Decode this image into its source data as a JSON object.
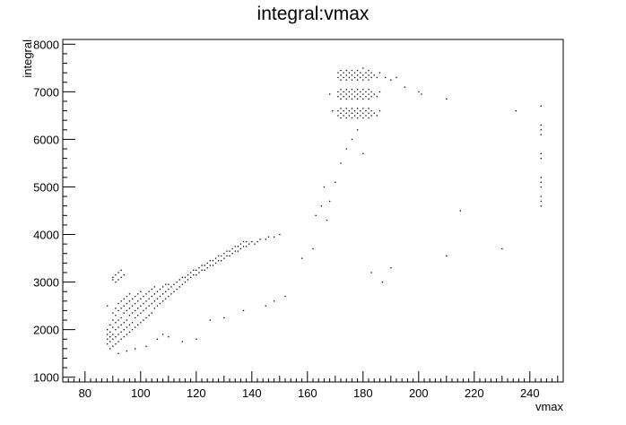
{
  "chart_data": {
    "type": "scatter",
    "title": "integral:vmax",
    "xlabel": "vmax",
    "ylabel": "integral",
    "xlim": [
      72,
      252
    ],
    "ylim": [
      900,
      8100
    ],
    "x_ticks": [
      80,
      100,
      120,
      140,
      160,
      180,
      200,
      220,
      240
    ],
    "y_ticks": [
      1000,
      2000,
      3000,
      4000,
      5000,
      6000,
      7000,
      8000
    ],
    "grid": false,
    "legend": "none",
    "marker_color": "#000000",
    "clusters": [
      {
        "region": "linear band",
        "x_range": [
          88,
          150
        ],
        "y_range": [
          1600,
          4000
        ],
        "trend": "increasing"
      },
      {
        "region": "upper stripes",
        "x_range": [
          171,
          186
        ],
        "y_levels": [
          6550,
          6950,
          7350
        ]
      },
      {
        "region": "right column",
        "x": 244,
        "y_range": [
          4600,
          6700
        ]
      }
    ],
    "points": [
      [
        88,
        1700
      ],
      [
        88,
        1800
      ],
      [
        88,
        1900
      ],
      [
        88,
        2000
      ],
      [
        88,
        2500
      ],
      [
        89,
        1600
      ],
      [
        89,
        1750
      ],
      [
        89,
        1850
      ],
      [
        89,
        1950
      ],
      [
        89,
        2100
      ],
      [
        90,
        1650
      ],
      [
        90,
        1800
      ],
      [
        90,
        1900
      ],
      [
        90,
        2050
      ],
      [
        90,
        2200
      ],
      [
        90,
        2350
      ],
      [
        90,
        3050
      ],
      [
        90,
        3100
      ],
      [
        91,
        1700
      ],
      [
        91,
        1850
      ],
      [
        91,
        2000
      ],
      [
        91,
        2150
      ],
      [
        91,
        2300
      ],
      [
        91,
        2450
      ],
      [
        91,
        3000
      ],
      [
        91,
        3150
      ],
      [
        92,
        1750
      ],
      [
        92,
        1900
      ],
      [
        92,
        2050
      ],
      [
        92,
        2200
      ],
      [
        92,
        2400
      ],
      [
        92,
        2550
      ],
      [
        92,
        3050
      ],
      [
        92,
        3200
      ],
      [
        93,
        1800
      ],
      [
        93,
        1950
      ],
      [
        93,
        2100
      ],
      [
        93,
        2250
      ],
      [
        93,
        2450
      ],
      [
        93,
        2600
      ],
      [
        93,
        3100
      ],
      [
        93,
        3250
      ],
      [
        94,
        1850
      ],
      [
        94,
        2000
      ],
      [
        94,
        2150
      ],
      [
        94,
        2350
      ],
      [
        94,
        2500
      ],
      [
        94,
        2650
      ],
      [
        94,
        3150
      ],
      [
        95,
        1900
      ],
      [
        95,
        2050
      ],
      [
        95,
        2200
      ],
      [
        95,
        2400
      ],
      [
        95,
        2550
      ],
      [
        95,
        2700
      ],
      [
        96,
        1950
      ],
      [
        96,
        2100
      ],
      [
        96,
        2300
      ],
      [
        96,
        2450
      ],
      [
        96,
        2600
      ],
      [
        96,
        2750
      ],
      [
        97,
        2000
      ],
      [
        97,
        2150
      ],
      [
        97,
        2350
      ],
      [
        97,
        2500
      ],
      [
        97,
        2650
      ],
      [
        98,
        2050
      ],
      [
        98,
        2250
      ],
      [
        98,
        2400
      ],
      [
        98,
        2550
      ],
      [
        98,
        2700
      ],
      [
        99,
        2100
      ],
      [
        99,
        2300
      ],
      [
        99,
        2450
      ],
      [
        99,
        2600
      ],
      [
        99,
        2750
      ],
      [
        100,
        2150
      ],
      [
        100,
        2350
      ],
      [
        100,
        2500
      ],
      [
        100,
        2650
      ],
      [
        100,
        2800
      ],
      [
        101,
        2200
      ],
      [
        101,
        2400
      ],
      [
        101,
        2550
      ],
      [
        101,
        2700
      ],
      [
        102,
        2250
      ],
      [
        102,
        2450
      ],
      [
        102,
        2600
      ],
      [
        102,
        2750
      ],
      [
        103,
        2300
      ],
      [
        103,
        2500
      ],
      [
        103,
        2650
      ],
      [
        103,
        2800
      ],
      [
        104,
        2350
      ],
      [
        104,
        2550
      ],
      [
        104,
        2700
      ],
      [
        104,
        2850
      ],
      [
        105,
        2450
      ],
      [
        105,
        2600
      ],
      [
        105,
        2750
      ],
      [
        105,
        2900
      ],
      [
        106,
        2500
      ],
      [
        106,
        2650
      ],
      [
        106,
        2800
      ],
      [
        107,
        2550
      ],
      [
        107,
        2700
      ],
      [
        107,
        2850
      ],
      [
        108,
        2600
      ],
      [
        108,
        2750
      ],
      [
        108,
        2900
      ],
      [
        109,
        2650
      ],
      [
        109,
        2800
      ],
      [
        109,
        2950
      ],
      [
        110,
        2700
      ],
      [
        110,
        2850
      ],
      [
        110,
        2950
      ],
      [
        111,
        2750
      ],
      [
        111,
        2900
      ],
      [
        112,
        2800
      ],
      [
        112,
        2950
      ],
      [
        113,
        2850
      ],
      [
        113,
        3000
      ],
      [
        114,
        2900
      ],
      [
        114,
        3050
      ],
      [
        115,
        2950
      ],
      [
        115,
        3100
      ],
      [
        116,
        3000
      ],
      [
        116,
        3100
      ],
      [
        117,
        3050
      ],
      [
        117,
        3150
      ],
      [
        118,
        3100
      ],
      [
        118,
        3200
      ],
      [
        119,
        3150
      ],
      [
        119,
        3250
      ],
      [
        120,
        3150
      ],
      [
        120,
        3250
      ],
      [
        121,
        3200
      ],
      [
        121,
        3300
      ],
      [
        122,
        3250
      ],
      [
        122,
        3350
      ],
      [
        123,
        3250
      ],
      [
        123,
        3350
      ],
      [
        124,
        3300
      ],
      [
        124,
        3400
      ],
      [
        125,
        3350
      ],
      [
        125,
        3450
      ],
      [
        126,
        3350
      ],
      [
        126,
        3450
      ],
      [
        127,
        3400
      ],
      [
        127,
        3500
      ],
      [
        128,
        3450
      ],
      [
        128,
        3550
      ],
      [
        129,
        3450
      ],
      [
        129,
        3550
      ],
      [
        130,
        3500
      ],
      [
        130,
        3600
      ],
      [
        131,
        3550
      ],
      [
        131,
        3650
      ],
      [
        132,
        3550
      ],
      [
        132,
        3650
      ],
      [
        133,
        3600
      ],
      [
        133,
        3700
      ],
      [
        134,
        3650
      ],
      [
        134,
        3750
      ],
      [
        135,
        3650
      ],
      [
        135,
        3750
      ],
      [
        136,
        3700
      ],
      [
        136,
        3800
      ],
      [
        137,
        3750
      ],
      [
        137,
        3850
      ],
      [
        138,
        3750
      ],
      [
        138,
        3850
      ],
      [
        139,
        3800
      ],
      [
        140,
        3850
      ],
      [
        141,
        3800
      ],
      [
        142,
        3850
      ],
      [
        143,
        3900
      ],
      [
        145,
        3900
      ],
      [
        146,
        3950
      ],
      [
        148,
        3950
      ],
      [
        150,
        4000
      ],
      [
        92,
        1500
      ],
      [
        95,
        1550
      ],
      [
        98,
        1600
      ],
      [
        102,
        1650
      ],
      [
        106,
        1800
      ],
      [
        108,
        1900
      ],
      [
        110,
        1850
      ],
      [
        115,
        1750
      ],
      [
        120,
        1800
      ],
      [
        125,
        2200
      ],
      [
        130,
        2250
      ],
      [
        137,
        2400
      ],
      [
        145,
        2500
      ],
      [
        148,
        2600
      ],
      [
        152,
        2700
      ],
      [
        158,
        3500
      ],
      [
        162,
        3700
      ],
      [
        163,
        4400
      ],
      [
        165,
        4600
      ],
      [
        166,
        5000
      ],
      [
        167,
        4300
      ],
      [
        168,
        4700
      ],
      [
        170,
        5100
      ],
      [
        172,
        5500
      ],
      [
        174,
        5800
      ],
      [
        176,
        6000
      ],
      [
        178,
        6200
      ],
      [
        180,
        5700
      ],
      [
        183,
        3200
      ],
      [
        187,
        3000
      ],
      [
        190,
        3300
      ],
      [
        210,
        3550
      ],
      [
        215,
        4500
      ],
      [
        230,
        3700
      ],
      [
        235,
        6600
      ],
      [
        171,
        6500
      ],
      [
        171,
        6600
      ],
      [
        172,
        6450
      ],
      [
        172,
        6550
      ],
      [
        172,
        6650
      ],
      [
        173,
        6500
      ],
      [
        173,
        6600
      ],
      [
        174,
        6450
      ],
      [
        174,
        6550
      ],
      [
        174,
        6650
      ],
      [
        175,
        6500
      ],
      [
        175,
        6600
      ],
      [
        176,
        6450
      ],
      [
        176,
        6550
      ],
      [
        176,
        6650
      ],
      [
        177,
        6500
      ],
      [
        177,
        6600
      ],
      [
        178,
        6450
      ],
      [
        178,
        6550
      ],
      [
        178,
        6650
      ],
      [
        179,
        6500
      ],
      [
        179,
        6600
      ],
      [
        180,
        6450
      ],
      [
        180,
        6550
      ],
      [
        180,
        6650
      ],
      [
        181,
        6500
      ],
      [
        181,
        6600
      ],
      [
        182,
        6450
      ],
      [
        182,
        6550
      ],
      [
        182,
        6650
      ],
      [
        183,
        6500
      ],
      [
        183,
        6600
      ],
      [
        184,
        6550
      ],
      [
        185,
        6500
      ],
      [
        186,
        6600
      ],
      [
        171,
        6900
      ],
      [
        171,
        7000
      ],
      [
        172,
        6850
      ],
      [
        172,
        6950
      ],
      [
        172,
        7050
      ],
      [
        173,
        6900
      ],
      [
        173,
        7000
      ],
      [
        174,
        6850
      ],
      [
        174,
        6950
      ],
      [
        174,
        7050
      ],
      [
        175,
        6900
      ],
      [
        175,
        7000
      ],
      [
        176,
        6850
      ],
      [
        176,
        6950
      ],
      [
        176,
        7050
      ],
      [
        177,
        6900
      ],
      [
        177,
        7000
      ],
      [
        178,
        6850
      ],
      [
        178,
        6950
      ],
      [
        178,
        7050
      ],
      [
        179,
        6900
      ],
      [
        179,
        7000
      ],
      [
        180,
        6850
      ],
      [
        180,
        6950
      ],
      [
        180,
        7050
      ],
      [
        181,
        6900
      ],
      [
        181,
        7000
      ],
      [
        182,
        6850
      ],
      [
        182,
        6950
      ],
      [
        182,
        7050
      ],
      [
        183,
        6900
      ],
      [
        183,
        7000
      ],
      [
        184,
        6950
      ],
      [
        185,
        6900
      ],
      [
        186,
        7000
      ],
      [
        171,
        7300
      ],
      [
        171,
        7400
      ],
      [
        172,
        7250
      ],
      [
        172,
        7350
      ],
      [
        172,
        7450
      ],
      [
        173,
        7300
      ],
      [
        173,
        7400
      ],
      [
        174,
        7250
      ],
      [
        174,
        7350
      ],
      [
        174,
        7450
      ],
      [
        175,
        7300
      ],
      [
        175,
        7400
      ],
      [
        176,
        7250
      ],
      [
        176,
        7350
      ],
      [
        176,
        7450
      ],
      [
        177,
        7300
      ],
      [
        177,
        7400
      ],
      [
        178,
        7250
      ],
      [
        178,
        7350
      ],
      [
        178,
        7450
      ],
      [
        179,
        7300
      ],
      [
        179,
        7400
      ],
      [
        180,
        7250
      ],
      [
        180,
        7350
      ],
      [
        180,
        7500
      ],
      [
        181,
        7300
      ],
      [
        181,
        7400
      ],
      [
        182,
        7250
      ],
      [
        182,
        7350
      ],
      [
        182,
        7450
      ],
      [
        183,
        7300
      ],
      [
        183,
        7400
      ],
      [
        184,
        7350
      ],
      [
        185,
        7300
      ],
      [
        186,
        7400
      ],
      [
        188,
        7300
      ],
      [
        190,
        7250
      ],
      [
        192,
        7300
      ],
      [
        195,
        7100
      ],
      [
        200,
        7000
      ],
      [
        201,
        6950
      ],
      [
        210,
        6850
      ],
      [
        168,
        6950
      ],
      [
        169,
        6600
      ],
      [
        244,
        4600
      ],
      [
        244,
        4700
      ],
      [
        244,
        4800
      ],
      [
        244,
        5000
      ],
      [
        244,
        5100
      ],
      [
        244,
        5200
      ],
      [
        244,
        5600
      ],
      [
        244,
        5700
      ],
      [
        244,
        6100
      ],
      [
        244,
        6200
      ],
      [
        244,
        6300
      ],
      [
        244,
        6700
      ]
    ]
  }
}
